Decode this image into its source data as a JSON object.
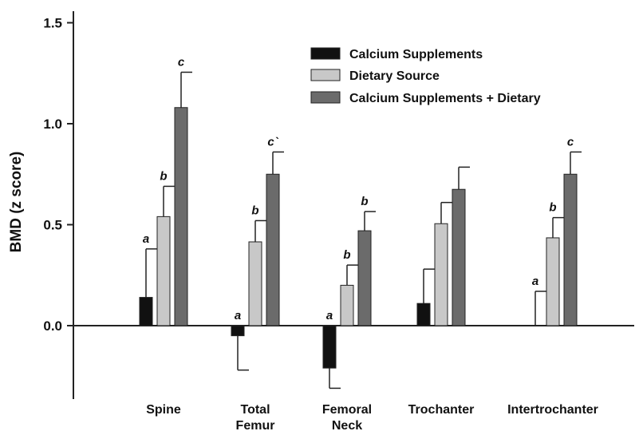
{
  "chart_data": {
    "type": "bar",
    "title": "",
    "xlabel": "",
    "ylabel": "BMD (z score)",
    "ylim": [
      -0.36,
      1.6
    ],
    "yticks": [
      0.0,
      0.5,
      1.0,
      1.5
    ],
    "ytick_labels": [
      "0.0",
      "0.5",
      "1.0",
      "1.5"
    ],
    "grid": false,
    "legend_position": "top-right",
    "categories": [
      {
        "line1": "Spine",
        "line2": ""
      },
      {
        "line1": "Total",
        "line2": "Femur"
      },
      {
        "line1": "Femoral",
        "line2": "Neck"
      },
      {
        "line1": "Trochanter",
        "line2": ""
      },
      {
        "line1": "Intertrochanter",
        "line2": ""
      }
    ],
    "series": [
      {
        "name": "Calcium Supplements",
        "color": "#111111",
        "values": [
          0.14,
          -0.05,
          -0.21,
          0.11,
          0.0
        ],
        "errors": [
          0.24,
          0.17,
          0.1,
          0.17,
          0.17
        ],
        "letters": [
          "a",
          "a",
          "a",
          "",
          "a"
        ]
      },
      {
        "name": "Dietary Source",
        "color": "#c8c8c8",
        "values": [
          0.54,
          0.415,
          0.2,
          0.505,
          0.435
        ],
        "errors": [
          0.15,
          0.105,
          0.1,
          0.105,
          0.1
        ],
        "letters": [
          "b",
          "b",
          "b",
          "",
          "b"
        ]
      },
      {
        "name": "Calcium Supplements + Dietary",
        "color": "#6b6b6b",
        "values": [
          1.08,
          0.75,
          0.47,
          0.675,
          0.75
        ],
        "errors": [
          0.175,
          0.11,
          0.095,
          0.11,
          0.11
        ],
        "letters": [
          "c",
          "c`",
          "b",
          "",
          "c"
        ]
      }
    ]
  }
}
